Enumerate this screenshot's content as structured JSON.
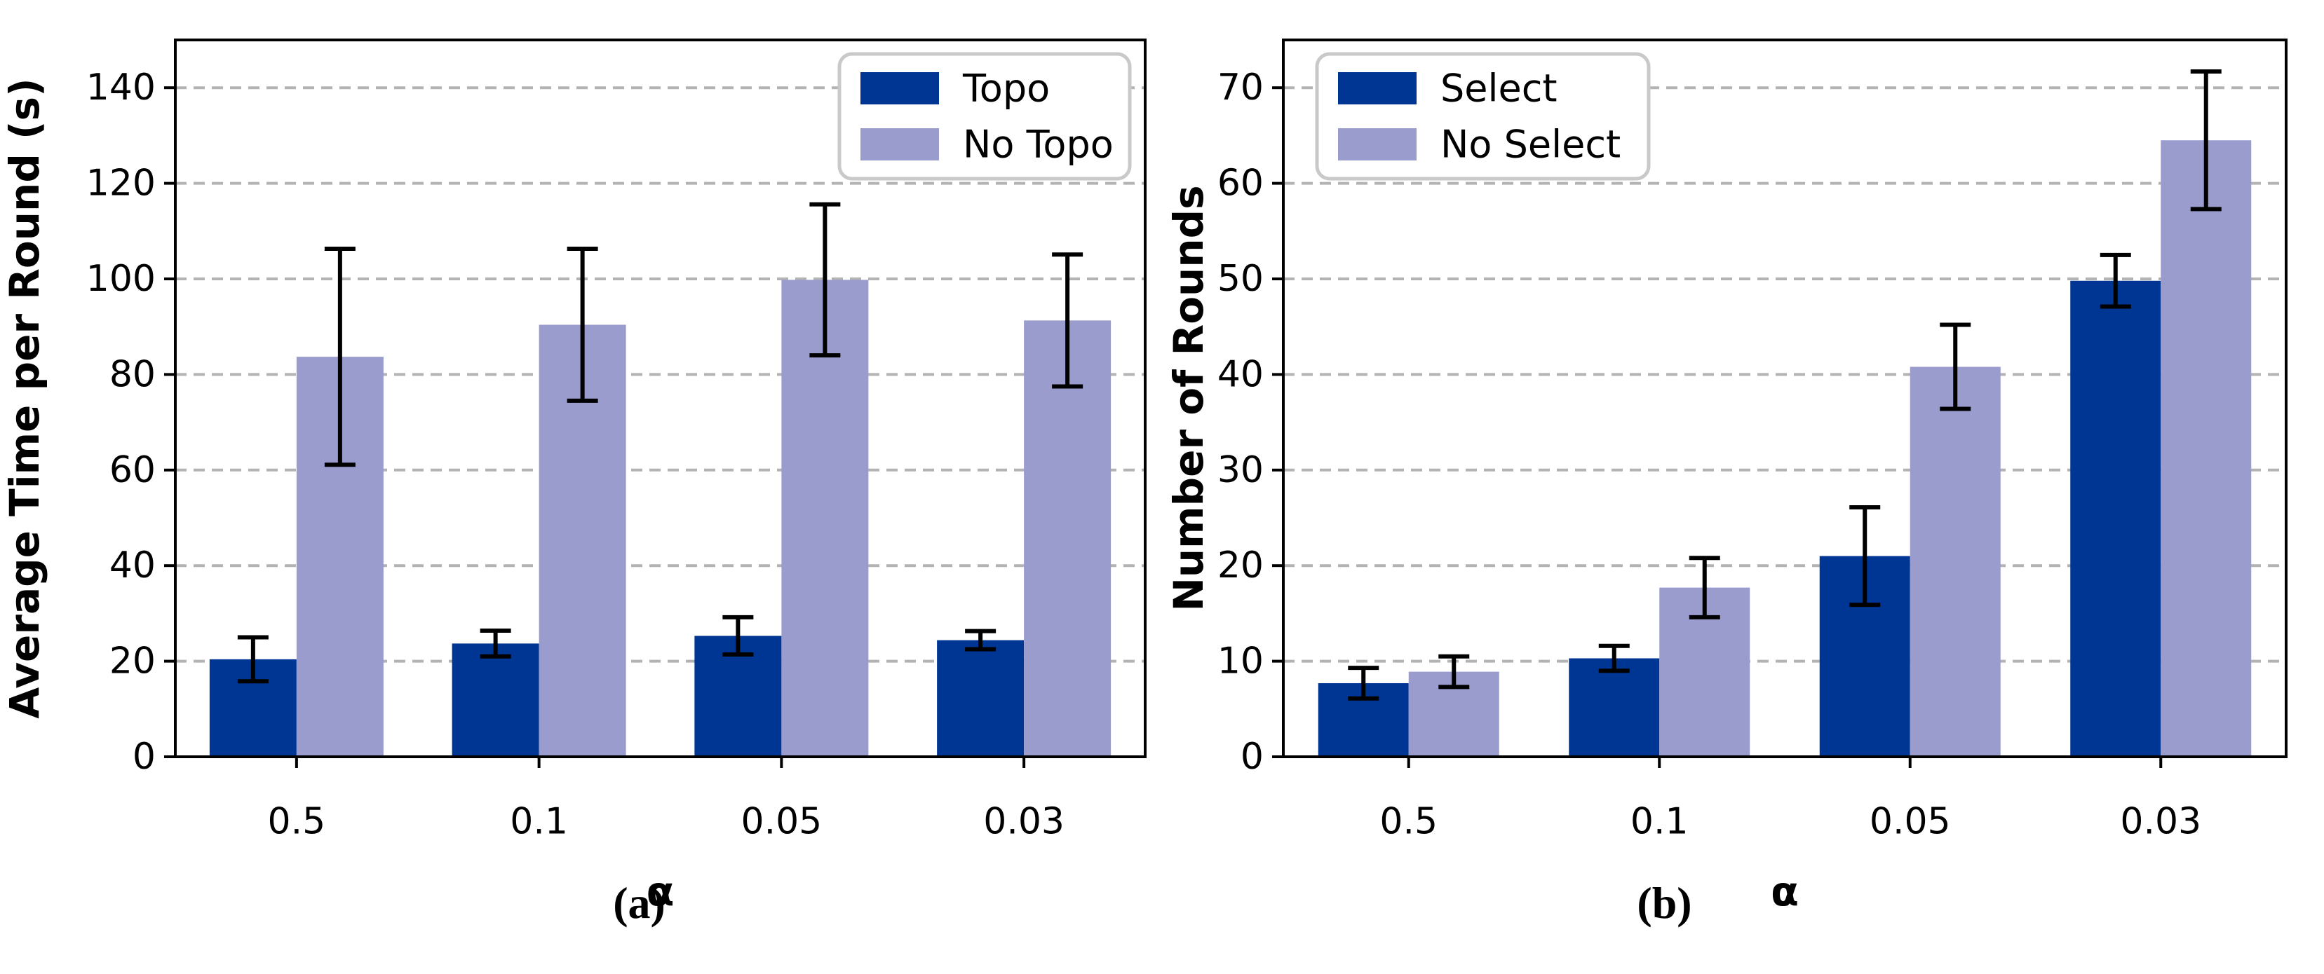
{
  "figure": {
    "captions": [
      "(a)",
      "(b)"
    ],
    "background": "#ffffff",
    "colors": {
      "bar_primary": "#003693",
      "bar_secondary": "#9a9cce",
      "grid": "#b3b3b3",
      "axis": "#000000",
      "error_bar": "#000000",
      "legend_border": "#c9c9c9",
      "text": "#000000"
    }
  },
  "chart_data": [
    {
      "type": "bar",
      "panel": "a",
      "title": "",
      "xlabel": "α",
      "ylabel": "Average Time per Round (s)",
      "categories": [
        "0.5",
        "0.1",
        "0.05",
        "0.03"
      ],
      "series": [
        {
          "name": "Topo",
          "color": "bar_primary",
          "values": [
            20.4,
            23.7,
            25.3,
            24.4
          ],
          "errors": [
            4.6,
            2.7,
            3.9,
            1.9
          ]
        },
        {
          "name": "No Topo",
          "color": "bar_secondary",
          "values": [
            83.7,
            90.4,
            99.8,
            91.3
          ],
          "errors": [
            22.6,
            15.9,
            15.8,
            13.8
          ]
        }
      ],
      "ylim": [
        0,
        150
      ],
      "yticks": [
        0,
        20,
        40,
        60,
        80,
        100,
        120,
        140
      ],
      "grid": "horizontal-dashed",
      "legend_position": "top-right"
    },
    {
      "type": "bar",
      "panel": "b",
      "title": "",
      "xlabel": "α",
      "ylabel": "Number of Rounds",
      "categories": [
        "0.5",
        "0.1",
        "0.05",
        "0.03"
      ],
      "series": [
        {
          "name": "Select",
          "color": "bar_primary",
          "values": [
            7.7,
            10.3,
            21.0,
            49.8
          ],
          "errors": [
            1.6,
            1.3,
            5.1,
            2.7
          ]
        },
        {
          "name": "No Select",
          "color": "bar_secondary",
          "values": [
            8.9,
            17.7,
            40.8,
            64.5
          ],
          "errors": [
            1.6,
            3.1,
            4.4,
            7.2
          ]
        }
      ],
      "ylim": [
        0,
        75
      ],
      "yticks": [
        0,
        10,
        20,
        30,
        40,
        50,
        60,
        70
      ],
      "grid": "horizontal-dashed",
      "legend_position": "top-left"
    }
  ]
}
